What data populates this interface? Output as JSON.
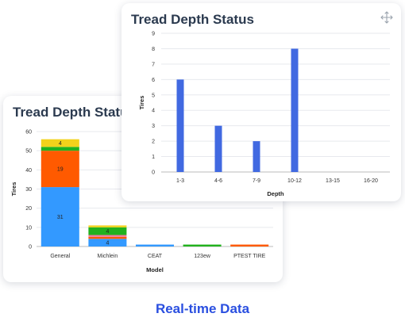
{
  "colors": {
    "accent": "#2a4fe0",
    "title": "#2b3a4f",
    "bar_blue": "#4169e1",
    "stack_blue": "#3399ff",
    "stack_orange": "#ff5a00",
    "stack_green": "#22b11e",
    "stack_yellow": "#f2d21b",
    "stack_pink": "#f07aa0"
  },
  "caption": "Real-time Data",
  "cards": {
    "front": {
      "title": "Tread Depth Status",
      "icon": "move-arrows-icon"
    },
    "back": {
      "title": "Tread Depth Status"
    }
  },
  "chart_data": [
    {
      "type": "bar",
      "title": "Tread Depth Status",
      "xlabel": "Depth",
      "ylabel": "Tires",
      "categories": [
        "1-3",
        "4-6",
        "7-9",
        "10-12",
        "13-15",
        "16-20"
      ],
      "values": [
        6,
        3,
        2,
        8,
        0,
        0
      ],
      "ylim": [
        0,
        9
      ],
      "yticks": [
        0,
        1,
        2,
        3,
        4,
        5,
        6,
        7,
        8,
        9
      ],
      "grid": true
    },
    {
      "type": "bar",
      "stacked": true,
      "title": "Tread Depth Status",
      "xlabel": "Model",
      "ylabel": "Tires",
      "categories": [
        "General",
        "Michlein",
        "CEAT",
        "123ew",
        "PTEST TIRE"
      ],
      "ylim": [
        0,
        60
      ],
      "yticks": [
        0,
        10,
        20,
        30,
        40,
        50,
        60
      ],
      "grid": true,
      "series": [
        {
          "color": "#3399ff",
          "values": [
            31,
            4,
            1,
            0,
            0
          ]
        },
        {
          "color": "#ff5a00",
          "values": [
            19,
            1,
            0,
            0,
            1
          ]
        },
        {
          "color": "#f07aa0",
          "values": [
            0,
            1,
            0,
            0,
            0
          ]
        },
        {
          "color": "#22b11e",
          "values": [
            2,
            4,
            0,
            1,
            0
          ]
        },
        {
          "color": "#f2d21b",
          "values": [
            4,
            1,
            0,
            0,
            0
          ]
        }
      ],
      "data_labels": [
        {
          "category": "General",
          "series": 0,
          "text": "31"
        },
        {
          "category": "General",
          "series": 1,
          "text": "19"
        },
        {
          "category": "General",
          "series": 4,
          "text": "4"
        },
        {
          "category": "Michlein",
          "series": 0,
          "text": "4"
        },
        {
          "category": "Michlein",
          "series": 3,
          "text": "4"
        }
      ]
    }
  ]
}
